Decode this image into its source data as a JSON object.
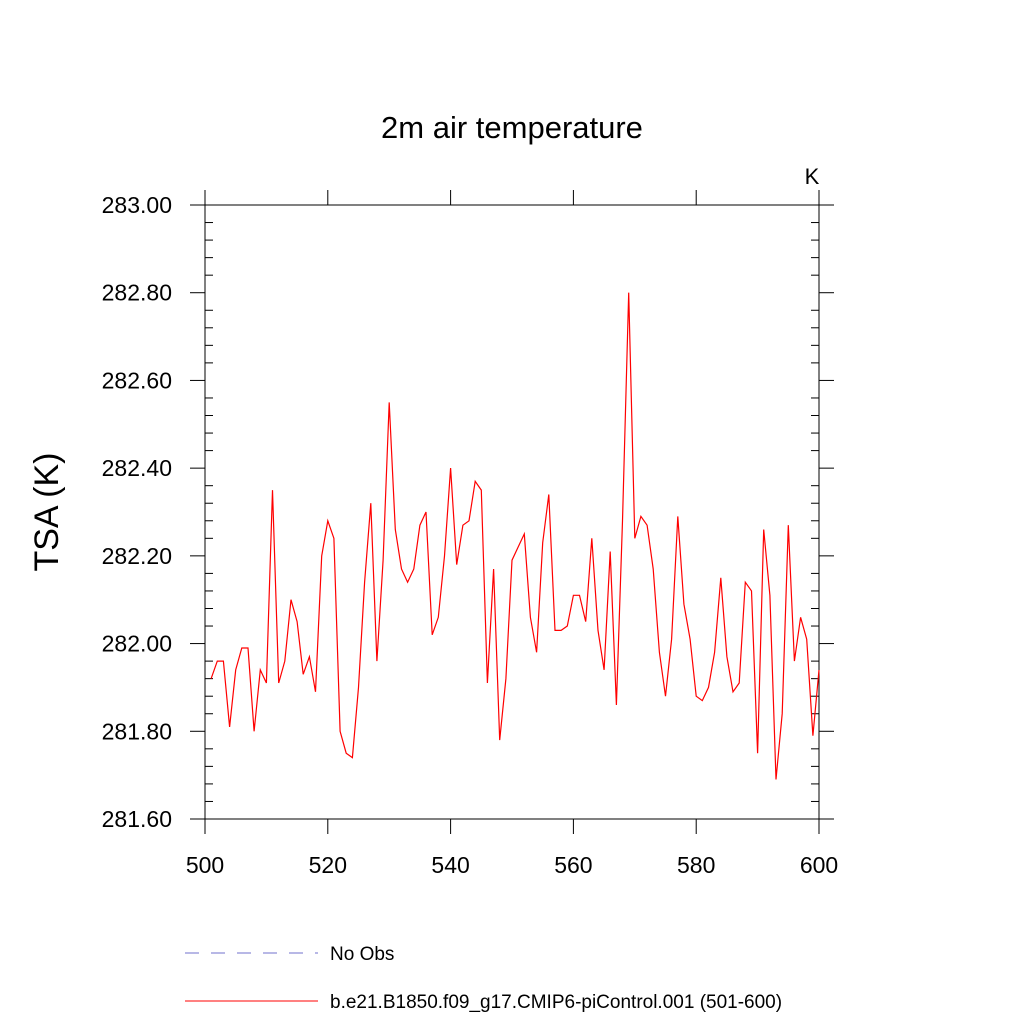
{
  "chart_data": {
    "type": "line",
    "title": "2m air temperature",
    "ylabel": "TSA  (K)",
    "xlabel": "",
    "units_label": "K",
    "xlim": [
      500,
      600
    ],
    "ylim": [
      281.6,
      283.0
    ],
    "xticks": [
      "500",
      "520",
      "540",
      "560",
      "580",
      "600"
    ],
    "yticks": [
      "281.60",
      "281.80",
      "282.00",
      "282.20",
      "282.40",
      "282.60",
      "282.80",
      "283.00"
    ],
    "grid": false,
    "legend_position": "bottom",
    "series": [
      {
        "name": "b.e21.B1850.f09_g17.CMIP6-piControl.001 (501-600)",
        "color": "#ff0000",
        "style": "solid",
        "x": [
          501,
          502,
          503,
          504,
          505,
          506,
          507,
          508,
          509,
          510,
          511,
          512,
          513,
          514,
          515,
          516,
          517,
          518,
          519,
          520,
          521,
          522,
          523,
          524,
          525,
          526,
          527,
          528,
          529,
          530,
          531,
          532,
          533,
          534,
          535,
          536,
          537,
          538,
          539,
          540,
          541,
          542,
          543,
          544,
          545,
          546,
          547,
          548,
          549,
          550,
          551,
          552,
          553,
          554,
          555,
          556,
          557,
          558,
          559,
          560,
          561,
          562,
          563,
          564,
          565,
          566,
          567,
          568,
          569,
          570,
          571,
          572,
          573,
          574,
          575,
          576,
          577,
          578,
          579,
          580,
          581,
          582,
          583,
          584,
          585,
          586,
          587,
          588,
          589,
          590,
          591,
          592,
          593,
          594,
          595,
          596,
          597,
          598,
          599,
          600
        ],
        "y": [
          281.92,
          281.96,
          281.96,
          281.81,
          281.94,
          281.99,
          281.99,
          281.8,
          281.94,
          281.91,
          282.35,
          281.91,
          281.96,
          282.1,
          282.05,
          281.93,
          281.97,
          281.89,
          282.2,
          282.28,
          282.24,
          281.8,
          281.75,
          281.74,
          281.9,
          282.14,
          282.32,
          281.96,
          282.19,
          282.55,
          282.26,
          282.17,
          282.14,
          282.17,
          282.27,
          282.3,
          282.02,
          282.06,
          282.2,
          282.4,
          282.18,
          282.27,
          282.28,
          282.37,
          282.35,
          281.91,
          282.17,
          281.78,
          281.92,
          282.19,
          282.22,
          282.25,
          282.06,
          281.98,
          282.23,
          282.34,
          282.03,
          282.03,
          282.04,
          282.11,
          282.11,
          282.05,
          282.24,
          282.03,
          281.94,
          282.21,
          281.86,
          282.28,
          282.8,
          282.24,
          282.29,
          282.27,
          282.17,
          281.98,
          281.88,
          282.01,
          282.29,
          282.09,
          282.01,
          281.88,
          281.87,
          281.9,
          281.98,
          282.15,
          281.97,
          281.89,
          281.91,
          282.14,
          282.12,
          281.75,
          282.26,
          282.11,
          281.69,
          281.84,
          282.27,
          281.96,
          282.06,
          282.01,
          281.79,
          281.94
        ]
      },
      {
        "name": "No Obs",
        "color": "#7070cc",
        "style": "dashed",
        "x": [],
        "y": []
      }
    ]
  }
}
